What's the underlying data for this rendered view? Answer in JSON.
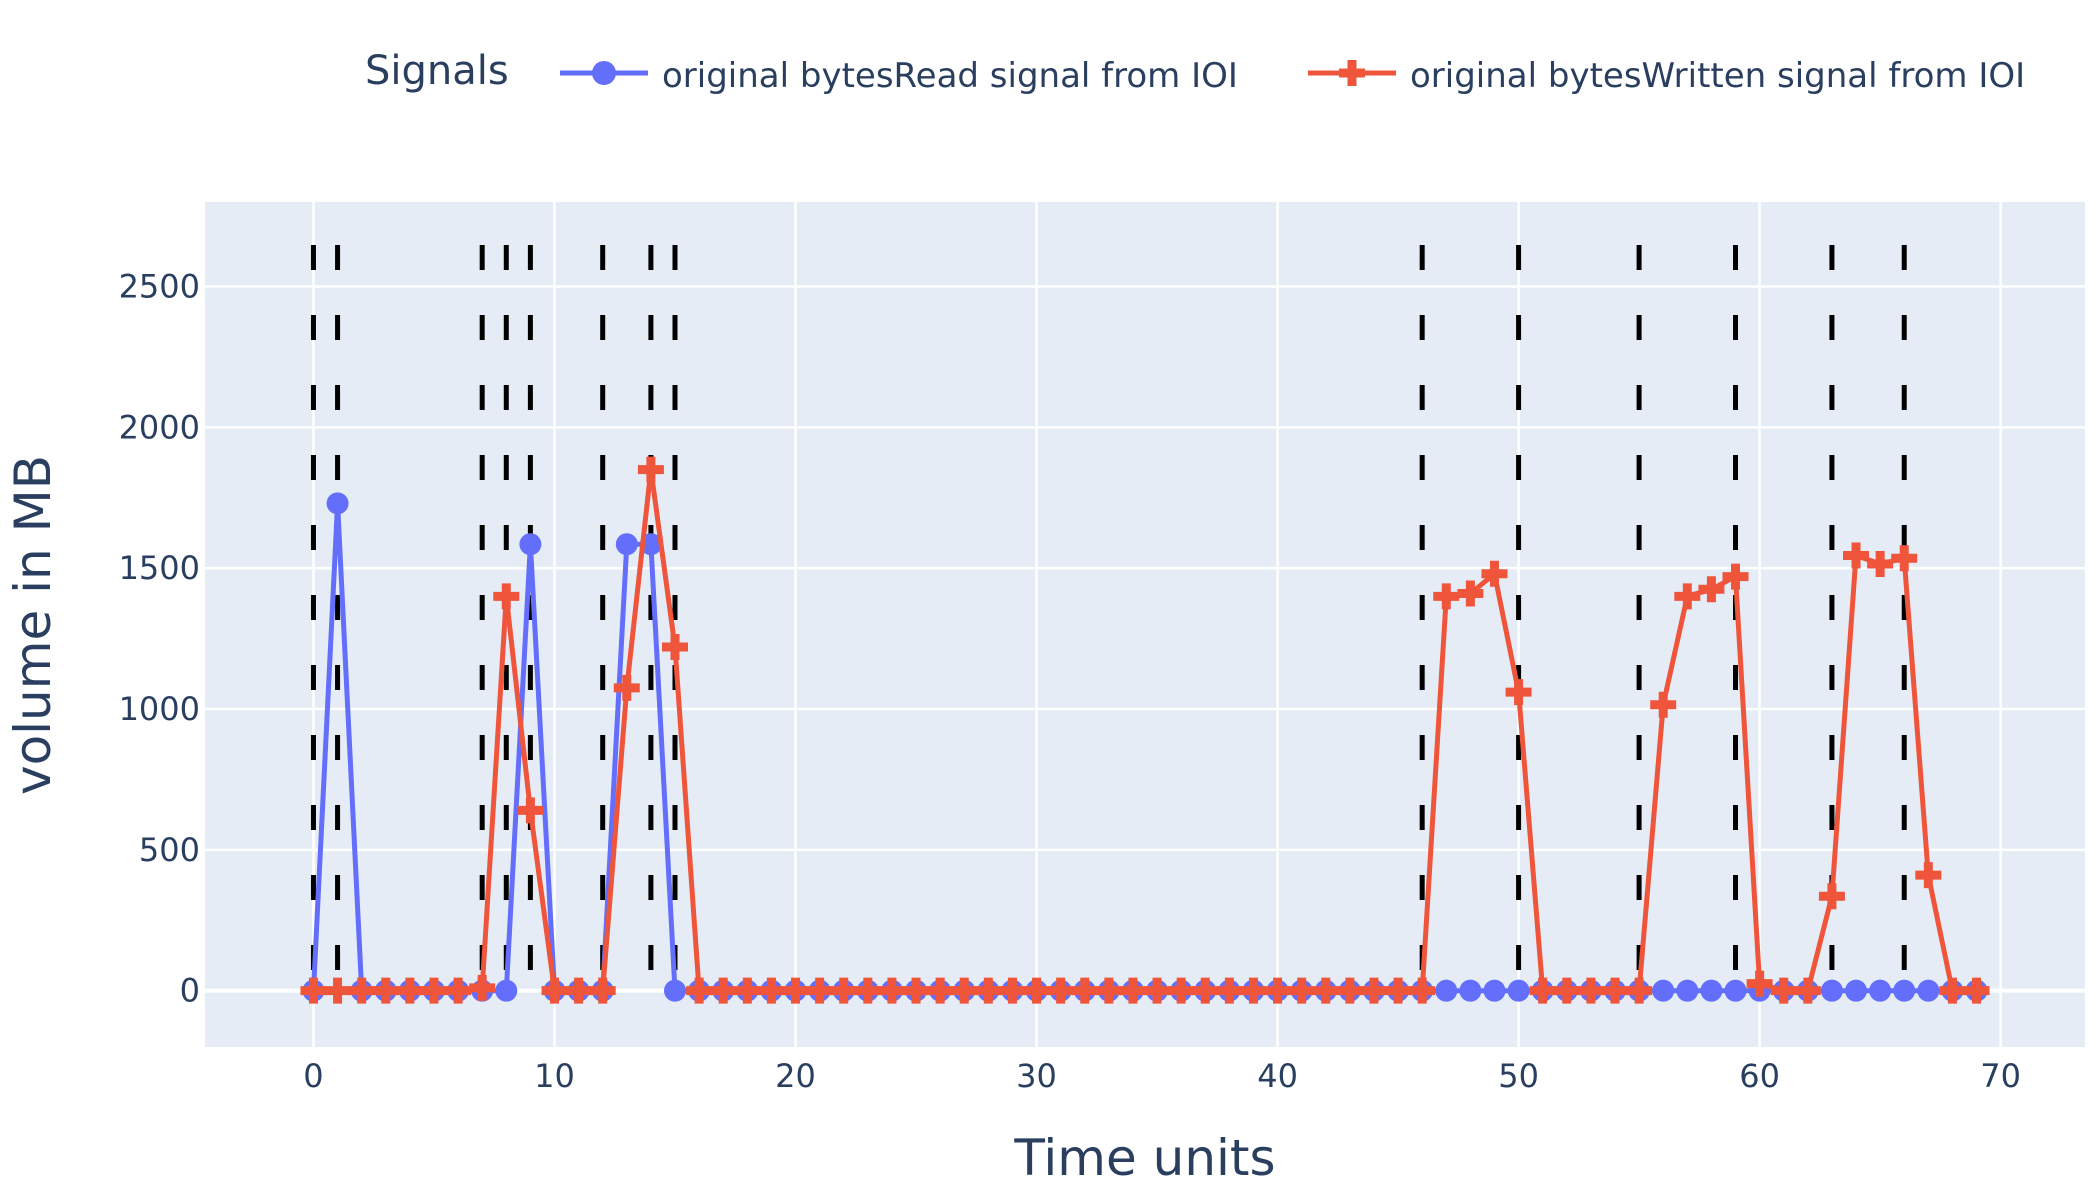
{
  "chart_data": {
    "type": "line",
    "title": "",
    "xlabel": "Time units",
    "ylabel": "volume in MB",
    "xlim": [
      -4.5,
      73.5
    ],
    "ylim": [
      -200,
      2800
    ],
    "x_ticks": [
      0,
      10,
      20,
      30,
      40,
      50,
      60,
      70
    ],
    "y_ticks": [
      0,
      500,
      1000,
      1500,
      2000,
      2500
    ],
    "grid": true,
    "legend": {
      "title": "Signals",
      "placement": "top-right, horizontal"
    },
    "colors": {
      "plot_bg": "#e5ecf6",
      "grid": "#ffffff",
      "text": "#2a3f5f",
      "vlines": "#000000"
    },
    "x": [
      0,
      1,
      2,
      3,
      4,
      5,
      6,
      7,
      8,
      9,
      10,
      11,
      12,
      13,
      14,
      15,
      16,
      17,
      18,
      19,
      20,
      21,
      22,
      23,
      24,
      25,
      26,
      27,
      28,
      29,
      30,
      31,
      32,
      33,
      34,
      35,
      36,
      37,
      38,
      39,
      40,
      41,
      42,
      43,
      44,
      45,
      46,
      47,
      48,
      49,
      50,
      51,
      52,
      53,
      54,
      55,
      56,
      57,
      58,
      59,
      60,
      61,
      62,
      63,
      64,
      65,
      66,
      67,
      68,
      69
    ],
    "series": [
      {
        "name": "original bytesRead signal from IOI",
        "color": "#636efa",
        "marker": "circle",
        "values": [
          0,
          1730,
          0,
          0,
          0,
          0,
          0,
          0,
          0,
          1585,
          0,
          0,
          0,
          1585,
          1585,
          0,
          0,
          0,
          0,
          0,
          0,
          0,
          0,
          0,
          0,
          0,
          0,
          0,
          0,
          0,
          0,
          0,
          0,
          0,
          0,
          0,
          0,
          0,
          0,
          0,
          0,
          0,
          0,
          0,
          0,
          0,
          0,
          0,
          0,
          0,
          0,
          0,
          0,
          0,
          0,
          0,
          0,
          0,
          0,
          0,
          0,
          0,
          0,
          0,
          0,
          0,
          0,
          0,
          0,
          0
        ]
      },
      {
        "name": "original bytesWritten signal from IOI",
        "color": "#ef553b",
        "marker": "cross",
        "values": [
          0,
          0,
          0,
          0,
          0,
          0,
          0,
          10,
          1400,
          640,
          0,
          0,
          0,
          1075,
          1850,
          1220,
          0,
          0,
          0,
          0,
          0,
          0,
          0,
          0,
          0,
          0,
          0,
          0,
          0,
          0,
          0,
          0,
          0,
          0,
          0,
          0,
          0,
          0,
          0,
          0,
          0,
          0,
          0,
          0,
          0,
          0,
          0,
          1400,
          1410,
          1480,
          1060,
          0,
          0,
          0,
          0,
          0,
          1015,
          1400,
          1425,
          1470,
          25,
          0,
          0,
          335,
          1545,
          1515,
          1535,
          410,
          0,
          0
        ]
      }
    ],
    "vertical_dashed_lines_x": [
      0,
      1,
      7,
      8,
      9,
      12,
      14,
      15,
      46,
      50,
      55,
      59,
      63,
      66
    ]
  }
}
